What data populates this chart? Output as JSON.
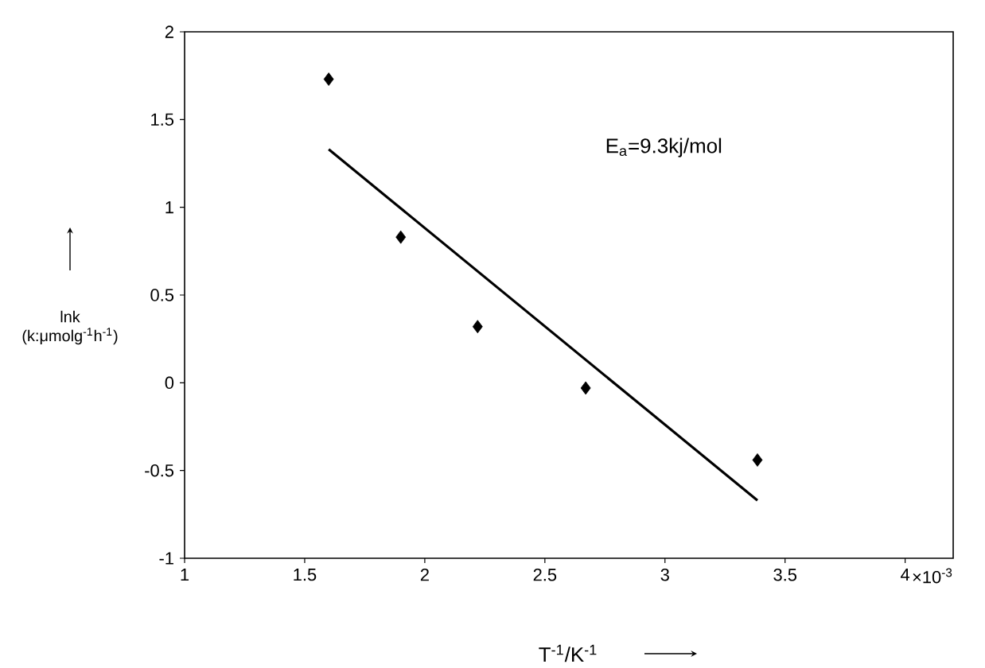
{
  "chart_data": {
    "type": "scatter",
    "xlabel": "T$^{-1}$/K$^{-1}$",
    "ylabel": "lnk (k:μmolg$^{-1}$h$^{-1}$)",
    "annotations": [
      "E$_{a}$=9.3kj/mol",
      "×10$^{-3}$"
    ],
    "xlim": [
      1,
      4.2
    ],
    "xticks": [
      1,
      1.5,
      2,
      2.5,
      3,
      3.5,
      4
    ],
    "ylim": [
      -1,
      2
    ],
    "yticks": [
      -1,
      -0.5,
      0,
      0.5,
      1,
      1.5,
      2
    ],
    "grid": false,
    "series": [
      {
        "marker": "diamond",
        "color": "#000000",
        "x": [
          1.6,
          1.9,
          2.22,
          2.67,
          3.385
        ],
        "values": [
          1.73,
          0.83,
          0.32,
          -0.03,
          -0.44
        ]
      },
      {
        "type": "line",
        "line_style": "solid",
        "color": "#000000",
        "x": [
          1.6,
          3.385
        ],
        "values": [
          1.33,
          -0.67
        ]
      }
    ]
  }
}
